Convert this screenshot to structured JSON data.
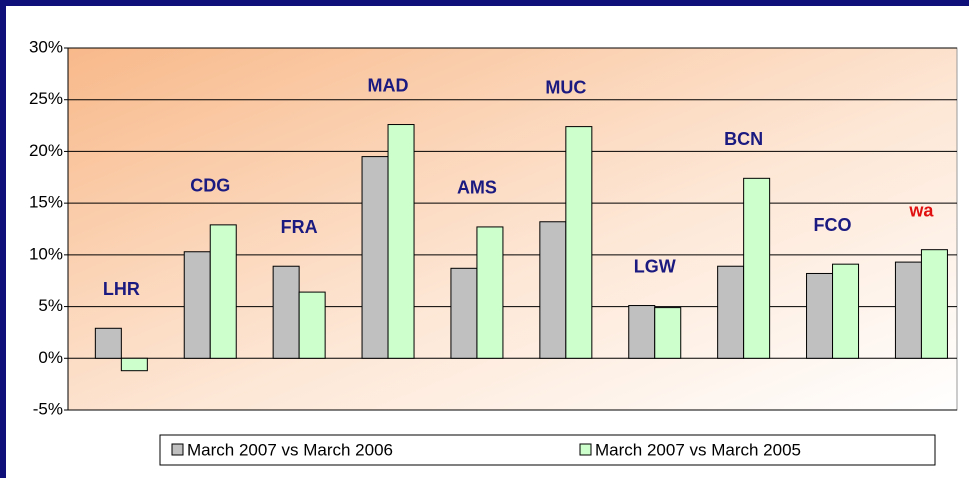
{
  "chart_data": {
    "type": "bar",
    "categories": [
      "LHR",
      "CDG",
      "FRA",
      "MAD",
      "AMS",
      "MUC",
      "LGW",
      "BCN",
      "FCO",
      "wa"
    ],
    "category_colors": [
      "#1a1a80",
      "#1a1a80",
      "#1a1a80",
      "#1a1a80",
      "#1a1a80",
      "#1a1a80",
      "#1a1a80",
      "#1a1a80",
      "#1a1a80",
      "#e01010"
    ],
    "series": [
      {
        "name": "March 2007 vs March 2006",
        "color": "#c0c0c0",
        "values": [
          2.9,
          10.3,
          8.9,
          19.5,
          8.7,
          13.2,
          5.1,
          8.9,
          8.2,
          9.3
        ]
      },
      {
        "name": "March 2007 vs March 2005",
        "color": "#ccffcc",
        "values": [
          -1.2,
          12.9,
          6.4,
          22.6,
          12.7,
          22.4,
          4.9,
          17.4,
          9.1,
          10.5
        ]
      }
    ],
    "ylim": [
      -5,
      30
    ],
    "yticks": [
      {
        "value": -5,
        "label": "-5%"
      },
      {
        "value": 0,
        "label": "0%"
      },
      {
        "value": 5,
        "label": "5%"
      },
      {
        "value": 10,
        "label": "10%"
      },
      {
        "value": 15,
        "label": "15%"
      },
      {
        "value": 20,
        "label": "20%"
      },
      {
        "value": 25,
        "label": "25%"
      },
      {
        "value": 30,
        "label": "30%"
      }
    ],
    "grid": true,
    "legend": "bottom"
  }
}
